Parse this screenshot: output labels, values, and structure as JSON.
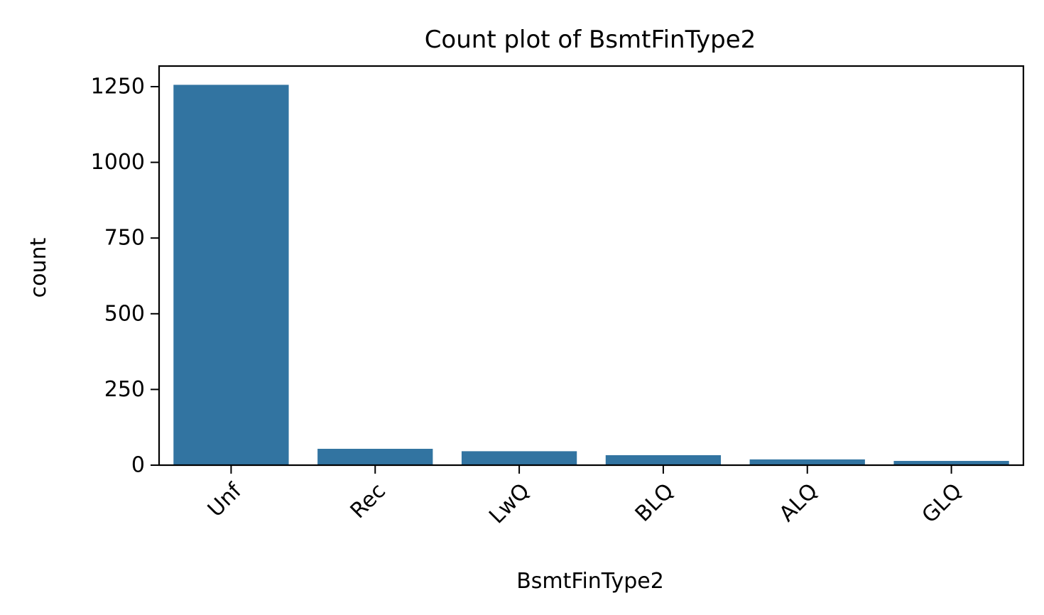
{
  "chart_data": {
    "type": "bar",
    "title": "Count plot of BsmtFinType2",
    "xlabel": "BsmtFinType2",
    "ylabel": "count",
    "categories": [
      "Unf",
      "Rec",
      "LwQ",
      "BLQ",
      "ALQ",
      "GLQ"
    ],
    "values": [
      1256,
      54,
      46,
      33,
      19,
      14
    ],
    "yticks": [
      0,
      250,
      500,
      750,
      1000,
      1250
    ],
    "ylim": [
      0,
      1318
    ],
    "grid": false,
    "bar_color": "#3274a1"
  }
}
